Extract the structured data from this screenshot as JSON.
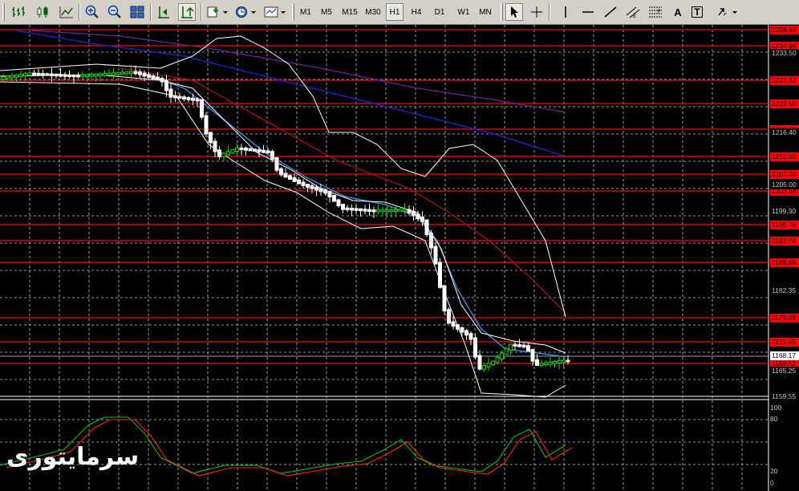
{
  "toolbar": {
    "timeframes": [
      "M1",
      "M5",
      "M15",
      "M30",
      "H1",
      "H4",
      "D1",
      "W1",
      "MN"
    ],
    "active_timeframe": "H1",
    "text_tool_label": "A",
    "label_tool_label": "T"
  },
  "chart": {
    "background": "#000000",
    "grid_color": "#c8c8c8",
    "up_candle_color": "#00e000",
    "down_candle_color": "#ffffff",
    "level_color": "#ff0000",
    "ma_colors": [
      "#3aa0ff",
      "#b01010",
      "#2020c0",
      "#7020a0"
    ],
    "band_color": "#ffffff"
  },
  "price_axis": {
    "red_levels": [
      "1238.53",
      "1234.94",
      "1227.42",
      "1222.50",
      "1216.30",
      "1211.05",
      "1207.24",
      "1203.64",
      "1196.70",
      "1192.74",
      "1188.45",
      "1176.48",
      "1171.45",
      "1168.52"
    ],
    "ticks": [
      "1233.50",
      "1216.40",
      "1205.00",
      "1199.30",
      "1182.35",
      "1165.25",
      "1159.55"
    ],
    "current_price": "1168.17"
  },
  "oscillator": {
    "levels": [
      "100",
      "80",
      "20",
      "0"
    ],
    "main_color": "#00c000",
    "signal_color": "#ff2020"
  },
  "watermark": "سرمایتوری"
}
